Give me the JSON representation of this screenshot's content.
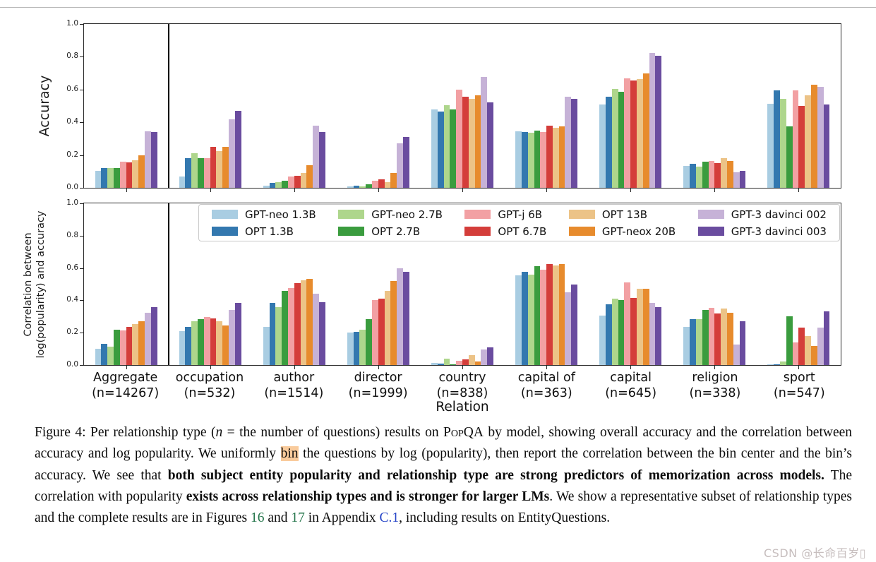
{
  "chart_data": [
    {
      "type": "bar",
      "title": "",
      "ylabel": "Accuracy",
      "ylabel_lines": [
        "Accuracy"
      ],
      "xlabel": "Relation",
      "ylim": [
        0,
        1.0
      ],
      "yticks": [
        "0.0",
        "0.2",
        "0.4",
        "0.6",
        "0.8",
        "1.0"
      ],
      "grid": false,
      "legend_position": "top of lower chart, 5 columns x 2 rows",
      "categories": [
        "Aggregate",
        "occupation",
        "author",
        "director",
        "country",
        "capital of",
        "capital",
        "religion",
        "sport"
      ],
      "category_counts": [
        "(n=14267)",
        "(n=532)",
        "(n=1514)",
        "(n=1999)",
        "(n=838)",
        "(n=363)",
        "(n=645)",
        "(n=338)",
        "(n=547)"
      ],
      "series": [
        {
          "name": "GPT-neo 1.3B",
          "color": "#a9cde2",
          "values": [
            0.105,
            0.07,
            0.015,
            0.01,
            0.48,
            0.345,
            0.51,
            0.135,
            0.515
          ]
        },
        {
          "name": "OPT 1.3B",
          "color": "#3378af",
          "values": [
            0.12,
            0.18,
            0.03,
            0.015,
            0.465,
            0.34,
            0.555,
            0.145,
            0.595
          ]
        },
        {
          "name": "GPT-neo 2.7B",
          "color": "#aed68c",
          "values": [
            0.12,
            0.21,
            0.035,
            0.01,
            0.505,
            0.335,
            0.605,
            0.13,
            0.545
          ]
        },
        {
          "name": "OPT 2.7B",
          "color": "#3a9c3e",
          "values": [
            0.12,
            0.18,
            0.045,
            0.02,
            0.48,
            0.35,
            0.585,
            0.16,
            0.375
          ]
        },
        {
          "name": "GPT-j 6B",
          "color": "#f2a0a3",
          "values": [
            0.16,
            0.18,
            0.07,
            0.045,
            0.6,
            0.34,
            0.67,
            0.165,
            0.595
          ]
        },
        {
          "name": "OPT 6.7B",
          "color": "#d43d3a",
          "values": [
            0.155,
            0.25,
            0.075,
            0.05,
            0.555,
            0.38,
            0.655,
            0.15,
            0.5
          ]
        },
        {
          "name": "OPT 13B",
          "color": "#ecc387",
          "values": [
            0.17,
            0.225,
            0.09,
            0.035,
            0.545,
            0.365,
            0.665,
            0.18,
            0.565
          ]
        },
        {
          "name": "GPT-neox 20B",
          "color": "#e78b2d",
          "values": [
            0.2,
            0.25,
            0.14,
            0.09,
            0.565,
            0.375,
            0.7,
            0.165,
            0.63
          ]
        },
        {
          "name": "GPT-3 davinci 002",
          "color": "#c6b2d7",
          "values": [
            0.345,
            0.42,
            0.38,
            0.27,
            0.675,
            0.555,
            0.825,
            0.095,
            0.615
          ]
        },
        {
          "name": "GPT-3 davinci 003",
          "color": "#6a4c9f",
          "values": [
            0.34,
            0.47,
            0.34,
            0.31,
            0.52,
            0.545,
            0.805,
            0.105,
            0.51
          ]
        }
      ]
    },
    {
      "type": "bar",
      "title": "",
      "ylabel": "Correlation between log(popularity) and accuracy",
      "ylabel_lines": [
        "Correlation between",
        "log(popularity) and accuracy"
      ],
      "xlabel": "Relation",
      "ylim": [
        0,
        1.0
      ],
      "yticks": [
        "0.0",
        "0.2",
        "0.4",
        "0.6",
        "0.8",
        "1.0"
      ],
      "grid": false,
      "categories": [
        "Aggregate",
        "occupation",
        "author",
        "director",
        "country",
        "capital of",
        "capital",
        "religion",
        "sport"
      ],
      "category_counts": [
        "(n=14267)",
        "(n=532)",
        "(n=1514)",
        "(n=1999)",
        "(n=838)",
        "(n=363)",
        "(n=645)",
        "(n=338)",
        "(n=547)"
      ],
      "series": [
        {
          "name": "GPT-neo 1.3B",
          "color": "#a9cde2",
          "values": [
            0.1,
            0.21,
            0.235,
            0.2,
            0.015,
            0.555,
            0.305,
            0.235,
            0.005
          ]
        },
        {
          "name": "OPT 1.3B",
          "color": "#3378af",
          "values": [
            0.13,
            0.235,
            0.385,
            0.205,
            0.01,
            0.575,
            0.375,
            0.285,
            0.005
          ]
        },
        {
          "name": "GPT-neo 2.7B",
          "color": "#aed68c",
          "values": [
            0.115,
            0.27,
            0.36,
            0.22,
            0.04,
            0.56,
            0.41,
            0.285,
            0.02
          ]
        },
        {
          "name": "OPT 2.7B",
          "color": "#3a9c3e",
          "values": [
            0.22,
            0.285,
            0.46,
            0.285,
            0.005,
            0.61,
            0.4,
            0.34,
            0.3
          ]
        },
        {
          "name": "GPT-j 6B",
          "color": "#f2a0a3",
          "values": [
            0.215,
            0.295,
            0.475,
            0.4,
            0.025,
            0.59,
            0.51,
            0.355,
            0.14
          ]
        },
        {
          "name": "OPT 6.7B",
          "color": "#d43d3a",
          "values": [
            0.235,
            0.29,
            0.505,
            0.41,
            0.035,
            0.625,
            0.415,
            0.32,
            0.23
          ]
        },
        {
          "name": "OPT 13B",
          "color": "#ecc387",
          "values": [
            0.255,
            0.27,
            0.525,
            0.46,
            0.06,
            0.615,
            0.47,
            0.35,
            0.18
          ]
        },
        {
          "name": "GPT-neox 20B",
          "color": "#e78b2d",
          "values": [
            0.27,
            0.245,
            0.535,
            0.52,
            0.02,
            0.625,
            0.47,
            0.325,
            0.12
          ]
        },
        {
          "name": "GPT-3 davinci 002",
          "color": "#c6b2d7",
          "values": [
            0.325,
            0.34,
            0.44,
            0.6,
            0.095,
            0.45,
            0.385,
            0.125,
            0.23
          ]
        },
        {
          "name": "GPT-3 davinci 003",
          "color": "#6a4c9f",
          "values": [
            0.36,
            0.385,
            0.39,
            0.575,
            0.11,
            0.5,
            0.36,
            0.27,
            0.33
          ]
        }
      ]
    }
  ],
  "caption": {
    "segments": [
      {
        "t": "Figure 4: Per relationship type (",
        "s": "n"
      },
      {
        "t": "n",
        "s": "i"
      },
      {
        "t": " = the number of questions) results on ",
        "s": "n"
      },
      {
        "t": "PopQA",
        "s": "sc"
      },
      {
        "t": " by model, showing overall accuracy and the correlation between accuracy and log popularity. We uniformly ",
        "s": "n"
      },
      {
        "t": "bin",
        "s": "hl"
      },
      {
        "t": " the questions by log (popularity), then report the correlation between the bin center and the bin’s accuracy. We see that ",
        "s": "n"
      },
      {
        "t": "both subject entity popularity and relationship type are strong predictors of memorization across models.",
        "s": "b"
      },
      {
        "t": " The correlation with popularity ",
        "s": "n"
      },
      {
        "t": "exists across relationship types and is stronger for larger LMs",
        "s": "b"
      },
      {
        "t": ". We show a representative subset of relationship types and the complete results are in Figures ",
        "s": "n"
      },
      {
        "t": "16",
        "s": "lg"
      },
      {
        "t": " and ",
        "s": "n"
      },
      {
        "t": "17",
        "s": "lg"
      },
      {
        "t": " in Appendix ",
        "s": "n"
      },
      {
        "t": "C.1",
        "s": "lb"
      },
      {
        "t": ", including results on EntityQuestions.",
        "s": "n"
      }
    ]
  },
  "watermark": "CSDN @长命百岁▯",
  "colors": {
    "link_green": "#23754a",
    "link_blue": "#2443c7",
    "highlight": "#f9cb9c",
    "separator": "#000000"
  }
}
